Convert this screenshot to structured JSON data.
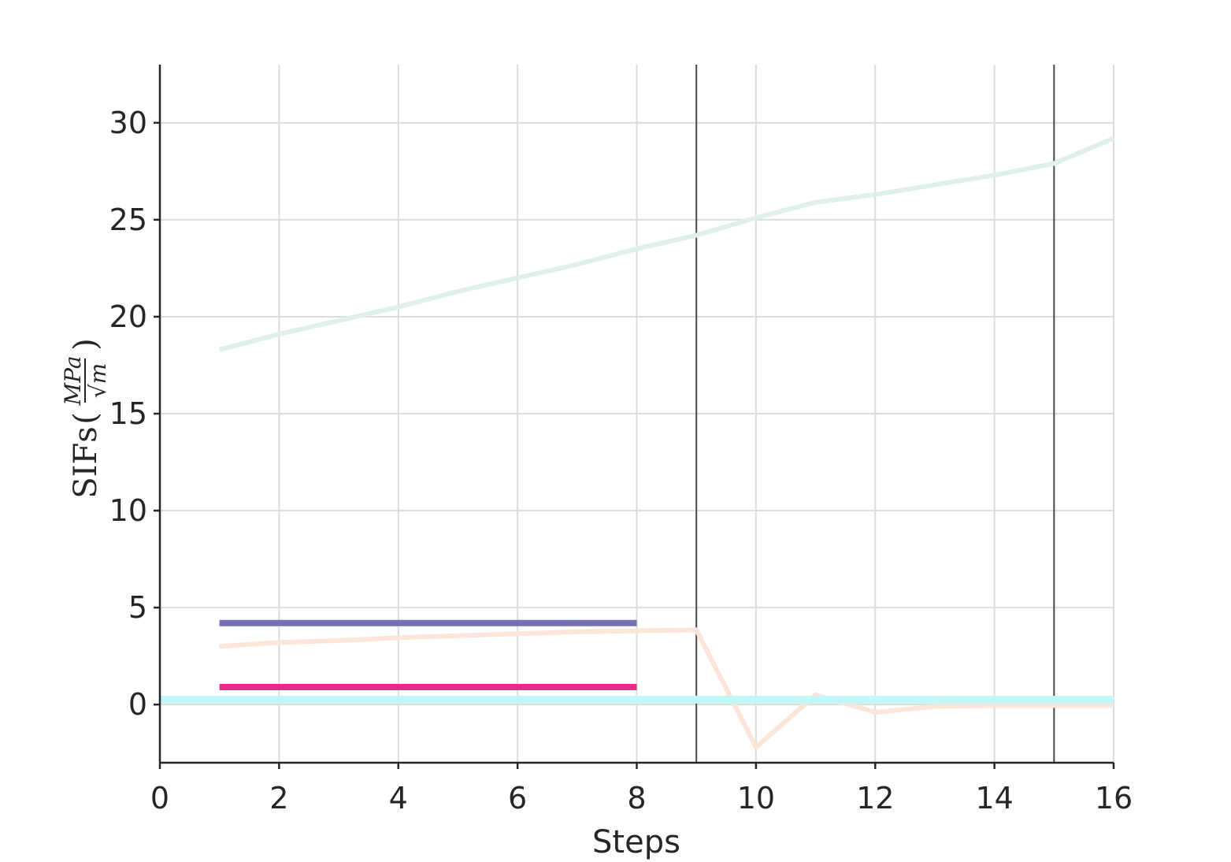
{
  "chart_data": {
    "type": "line",
    "xlabel": "Steps",
    "ylabel": {
      "text": "SIFs",
      "unit_numerator": "MPa",
      "unit_denominator": "√m"
    },
    "xlim": [
      0,
      16
    ],
    "ylim": [
      -3,
      33
    ],
    "xticks": [
      0,
      2,
      4,
      6,
      8,
      10,
      12,
      14,
      16
    ],
    "yticks": [
      0,
      5,
      10,
      15,
      20,
      25,
      30
    ],
    "grid": true,
    "vlines": [
      9,
      15
    ],
    "series": [
      {
        "color": "#dff0ea",
        "width": 6,
        "x": [
          1,
          2,
          3,
          4,
          5,
          6,
          7,
          8,
          9,
          10,
          11,
          12,
          13,
          14,
          15,
          16
        ],
        "y": [
          18.3,
          19.1,
          19.8,
          20.5,
          21.3,
          22.0,
          22.7,
          23.5,
          24.2,
          25.1,
          25.9,
          26.3,
          26.8,
          27.3,
          27.9,
          29.2
        ]
      },
      {
        "color": "#fbe5da",
        "width": 6,
        "x": [
          1,
          2,
          3,
          4,
          5,
          6,
          7,
          8,
          9,
          10,
          11,
          12,
          13,
          14,
          15,
          16
        ],
        "y": [
          3.0,
          3.2,
          3.3,
          3.45,
          3.55,
          3.65,
          3.75,
          3.8,
          3.85,
          -2.2,
          0.5,
          -0.4,
          -0.1,
          -0.05,
          -0.05,
          -0.05
        ]
      },
      {
        "color": "#c2f7f7",
        "width": 10,
        "x": [
          0,
          16
        ],
        "y": [
          0.25,
          0.25
        ]
      },
      {
        "color": "#7570b3",
        "width": 8,
        "x": [
          1,
          8
        ],
        "y": [
          4.2,
          4.2
        ]
      },
      {
        "color": "#e7298a",
        "width": 8,
        "x": [
          1,
          8
        ],
        "y": [
          0.9,
          0.9
        ]
      }
    ]
  }
}
